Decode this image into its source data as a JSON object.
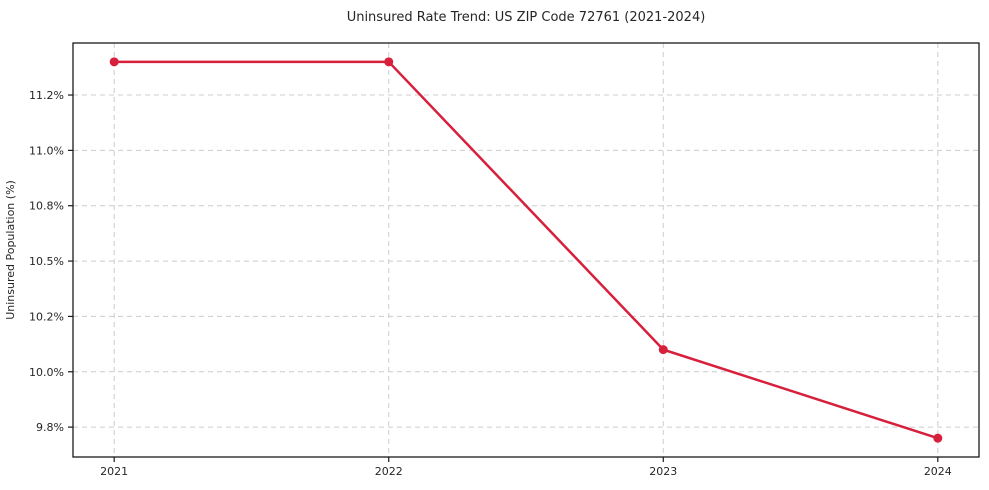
{
  "chart_data": {
    "type": "line",
    "title": "Uninsured Rate Trend: US ZIP Code 72761 (2021-2024)",
    "xlabel": "",
    "ylabel": "Uninsured Population (%)",
    "x": [
      2021,
      2022,
      2023,
      2024
    ],
    "series": [
      {
        "name": "Uninsured rate",
        "values": [
          11.4,
          11.4,
          10.1,
          9.7
        ]
      }
    ],
    "xlim": [
      2020.85,
      2024.15
    ],
    "ylim": [
      9.615,
      11.485
    ],
    "xticks": [
      {
        "value": 2021,
        "label": "2021"
      },
      {
        "value": 2022,
        "label": "2022"
      },
      {
        "value": 2023,
        "label": "2023"
      },
      {
        "value": 2024,
        "label": "2024"
      }
    ],
    "yticks": [
      {
        "value": 9.75,
        "label": "9.8%"
      },
      {
        "value": 10.0,
        "label": "10.0%"
      },
      {
        "value": 10.25,
        "label": "10.2%"
      },
      {
        "value": 10.5,
        "label": "10.5%"
      },
      {
        "value": 10.75,
        "label": "10.8%"
      },
      {
        "value": 11.0,
        "label": "11.0%"
      },
      {
        "value": 11.25,
        "label": "11.2%"
      }
    ],
    "grid": true,
    "legend": "none",
    "colors": {
      "line": "#d6203c",
      "marker": "#d6203c",
      "grid": "#cccccc",
      "spine": "#1a1a1a",
      "tick": "#1a1a1a"
    }
  }
}
